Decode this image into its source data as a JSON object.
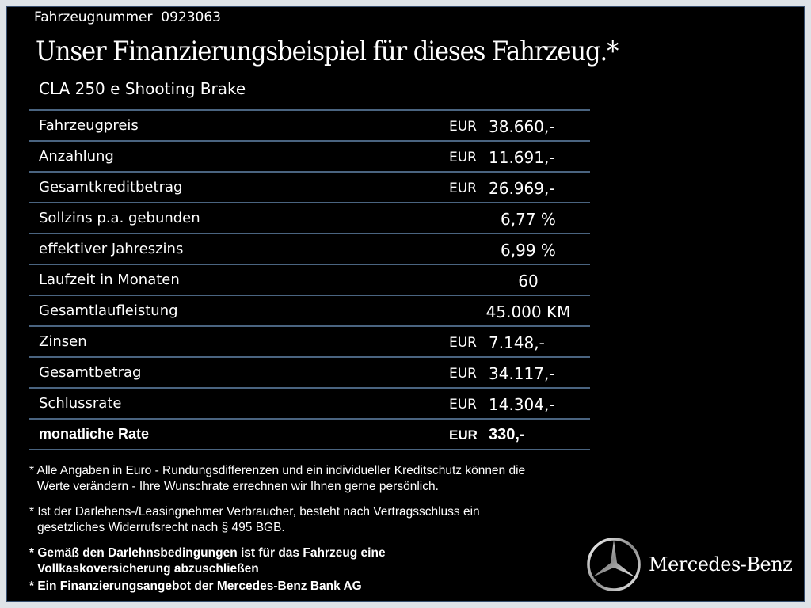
{
  "vehicle_number_label": "Fahrzeugnummer",
  "vehicle_number": "0923063",
  "title": "Unser Finanzierungsbeispiel für dieses Fahrzeug.*",
  "model": "CLA 250 e Shooting Brake",
  "rows": [
    {
      "label": "Fahrzeugpreis",
      "currency": "EUR",
      "value": "38.660,-"
    },
    {
      "label": "Anzahlung",
      "currency": "EUR",
      "value": "11.691,-"
    },
    {
      "label": "Gesamtkreditbetrag",
      "currency": "EUR",
      "value": "26.969,-"
    },
    {
      "label": "Sollzins p.a. gebunden",
      "currency": "",
      "value": "6,77 %"
    },
    {
      "label": "effektiver Jahreszins",
      "currency": "",
      "value": "6,99 %"
    },
    {
      "label": "Laufzeit in Monaten",
      "currency": "",
      "value": "60"
    },
    {
      "label": "Gesamtlaufleistung",
      "currency": "",
      "value": "45.000 KM"
    },
    {
      "label": "Zinsen",
      "currency": "EUR",
      "value": "7.148,-"
    },
    {
      "label": "Gesamtbetrag",
      "currency": "EUR",
      "value": "34.117,-"
    },
    {
      "label": "Schlussrate",
      "currency": "EUR",
      "value": "14.304,-"
    },
    {
      "label": "monatliche Rate",
      "currency": "EUR",
      "value": "330,-"
    }
  ],
  "notes": [
    [
      "* Alle Angaben in Euro - Rundungsdifferenzen und ein individueller Kreditschutz können die",
      "Werte verändern - Ihre Wunschrate errechnen wir Ihnen gerne persönlich."
    ],
    [
      "* Ist der Darlehens-/Leasingnehmer Verbraucher, besteht nach Vertragsschluss ein",
      "gesetzliches Widerrufsrecht nach § 495 BGB."
    ],
    [
      "* Gemäß den Darlehnsbedingungen ist für das Fahrzeug eine",
      "Vollkaskoversicherung abzuschließen"
    ],
    [
      "* Ein Finanzierungsangebot der Mercedes-Benz Bank AG"
    ]
  ],
  "brand": "Mercedes-Benz",
  "colors": {
    "background": "#000000",
    "divider": "#4a6480",
    "text": "#ffffff"
  }
}
